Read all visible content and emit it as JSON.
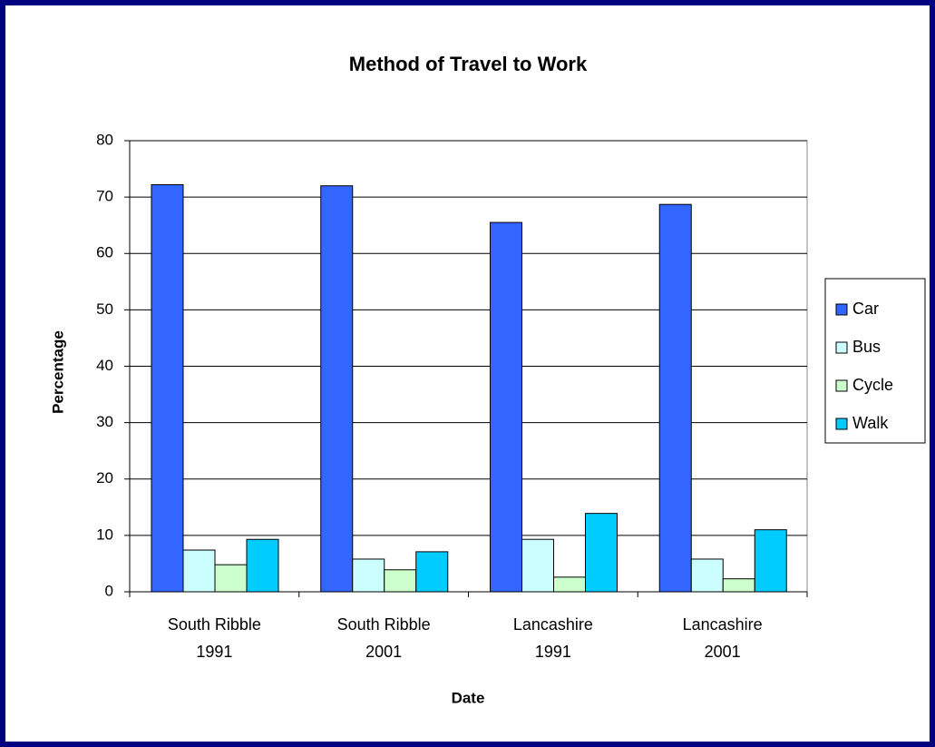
{
  "chart_data": {
    "type": "bar",
    "title": "Method of Travel to Work",
    "x_label": "Date",
    "y_label": "Percentage",
    "categories": [
      "South Ribble\n1991",
      "South Ribble\n2001",
      "Lancashire\n1991",
      "Lancashire\n2001"
    ],
    "series": [
      {
        "name": "Car",
        "color": "#3366ff",
        "values": [
          72.2,
          72.0,
          65.5,
          68.7
        ]
      },
      {
        "name": "Bus",
        "color": "#ccffff",
        "values": [
          7.4,
          5.8,
          9.3,
          5.8
        ]
      },
      {
        "name": "Cycle",
        "color": "#ccffcc",
        "values": [
          4.8,
          3.9,
          2.6,
          2.3
        ]
      },
      {
        "name": "Walk",
        "color": "#00ccff",
        "values": [
          9.3,
          7.1,
          13.9,
          11.0
        ]
      }
    ],
    "ylim": [
      0,
      80
    ],
    "yticks": [
      0,
      10,
      20,
      30,
      40,
      50,
      60,
      70,
      80
    ],
    "grid": true,
    "legend": "right"
  }
}
